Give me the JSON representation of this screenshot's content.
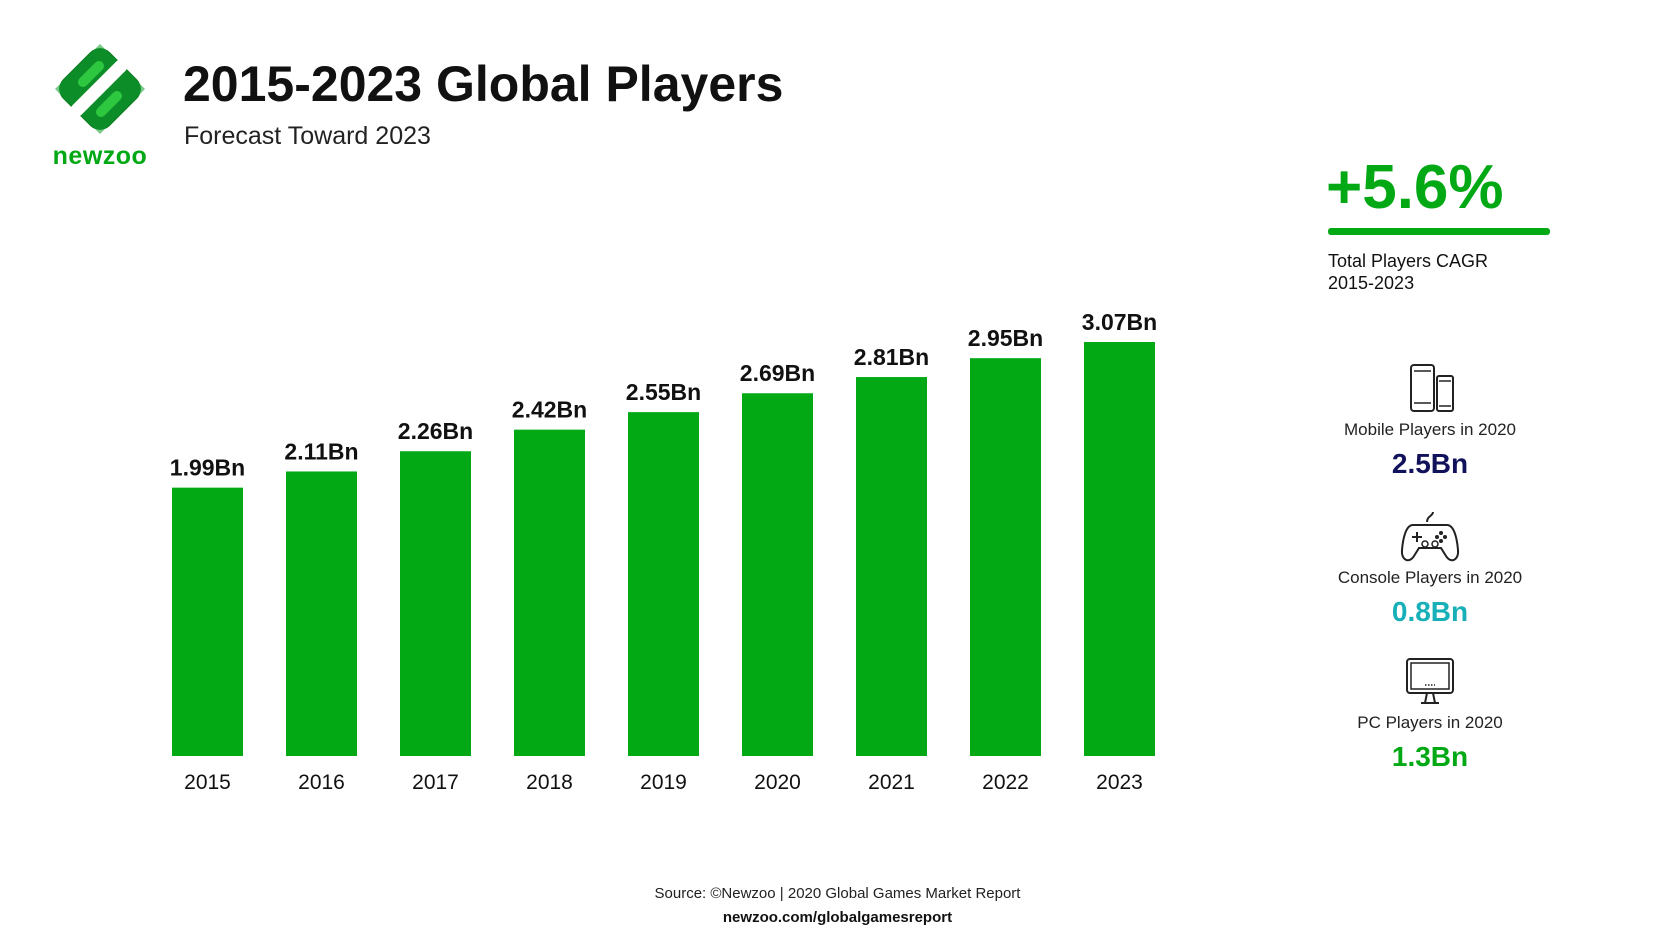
{
  "brand": {
    "name": "newzoo",
    "color": "#02a914"
  },
  "header": {
    "title": "2015-2023 Global Players",
    "subtitle": "Forecast Toward 2023"
  },
  "chart_data": {
    "type": "bar",
    "title": "2015-2023 Global Players",
    "subtitle": "Forecast Toward 2023",
    "categories": [
      "2015",
      "2016",
      "2017",
      "2018",
      "2019",
      "2020",
      "2021",
      "2022",
      "2023"
    ],
    "values": [
      1.99,
      2.11,
      2.26,
      2.42,
      2.55,
      2.69,
      2.81,
      2.95,
      3.07
    ],
    "value_labels": [
      "1.99Bn",
      "2.11Bn",
      "2.26Bn",
      "2.42Bn",
      "2.55Bn",
      "2.69Bn",
      "2.81Bn",
      "2.95Bn",
      "3.07Bn"
    ],
    "unit": "Bn",
    "bar_color": "#02a914",
    "grid": false,
    "legend": "none"
  },
  "kpi": {
    "value": "+5.6%",
    "label_line1": "Total Players CAGR",
    "label_line2": "2015-2023"
  },
  "stats": [
    {
      "icon": "mobile-devices-icon",
      "label": "Mobile Players in 2020",
      "value": "2.5Bn",
      "color": "#12125c"
    },
    {
      "icon": "gamepad-icon",
      "label": "Console Players in 2020",
      "value": "0.8Bn",
      "color": "#17b0b8"
    },
    {
      "icon": "monitor-icon",
      "label": "PC Players in 2020",
      "value": "1.3Bn",
      "color": "#02a914"
    }
  ],
  "footer": {
    "source": "Source: ©Newzoo | 2020 Global Games Market Report",
    "url": "newzoo.com/globalgamesreport"
  }
}
